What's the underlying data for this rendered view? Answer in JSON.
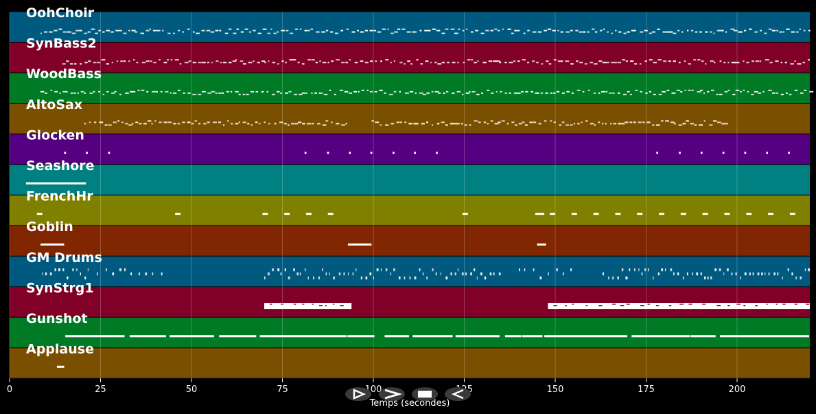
{
  "chart_data": {
    "type": "piano-roll",
    "xlabel": "Temps (secondes)",
    "xlim": [
      0,
      220
    ],
    "xticks": [
      0,
      25,
      50,
      75,
      100,
      125,
      150,
      175,
      200
    ],
    "grid": true,
    "colors": {
      "background": "#000000",
      "note": "#ffffff",
      "grid": "#ffffff"
    },
    "tracks": [
      {
        "name": "OohChoir",
        "color": "#005a80",
        "notes": [
          [
            8.5,
            220,
            "dense"
          ]
        ]
      },
      {
        "name": "SynBass2",
        "color": "#800028",
        "notes": [
          [
            14.5,
            220,
            "dense"
          ]
        ]
      },
      {
        "name": "WoodBass",
        "color": "#007a25",
        "notes": [
          [
            8.5,
            220,
            "dense"
          ]
        ]
      },
      {
        "name": "AltoSax",
        "color": "#7a5000",
        "notes": [
          [
            20.5,
            92.5,
            "dense"
          ],
          [
            99.5,
            197,
            "dense"
          ]
        ]
      },
      {
        "name": "Glocken",
        "color": "#550080",
        "notes": [
          [
            15,
            15.5
          ],
          [
            21,
            21.5
          ],
          [
            27.1,
            27.6
          ],
          [
            81.1,
            81.6
          ],
          [
            87.3,
            87.8
          ],
          [
            93.3,
            93.8
          ],
          [
            99.2,
            99.7
          ],
          [
            105.3,
            105.8
          ],
          [
            111.2,
            111.7
          ],
          [
            117.2,
            117.7
          ],
          [
            177.8,
            178.3
          ],
          [
            184,
            184.5
          ],
          [
            190,
            190.5
          ],
          [
            196,
            196.5
          ],
          [
            202,
            202.5
          ],
          [
            208,
            208.5
          ],
          [
            214,
            214.5
          ]
        ]
      },
      {
        "name": "Seashore",
        "color": "#008080",
        "notes": [
          [
            4.5,
            21
          ]
        ]
      },
      {
        "name": "FrenchHr",
        "color": "#808000",
        "notes": [
          [
            7.5,
            9
          ],
          [
            45.5,
            47
          ],
          [
            69.5,
            71
          ],
          [
            75.5,
            77
          ],
          [
            81.5,
            83
          ],
          [
            87.5,
            89
          ],
          [
            124.5,
            126
          ],
          [
            144.5,
            147
          ],
          [
            148.5,
            150
          ],
          [
            154.5,
            156
          ],
          [
            160.5,
            162
          ],
          [
            166.5,
            168
          ],
          [
            172.5,
            174
          ],
          [
            178.5,
            180
          ],
          [
            184.5,
            186
          ],
          [
            190.5,
            192
          ],
          [
            196.5,
            198
          ],
          [
            202.5,
            204
          ],
          [
            208.5,
            210
          ],
          [
            214.5,
            216
          ]
        ]
      },
      {
        "name": "Goblin",
        "color": "#802600",
        "notes": [
          [
            8.5,
            15
          ],
          [
            93,
            99.5
          ],
          [
            145,
            147.5
          ]
        ]
      },
      {
        "name": "GM Drums",
        "color": "#005a80",
        "notes": [
          [
            9,
            22,
            "dense"
          ],
          [
            24,
            43,
            "sparse"
          ],
          [
            70,
            135,
            "dense"
          ],
          [
            140,
            155,
            "sparse"
          ],
          [
            163,
            220,
            "dense"
          ]
        ]
      },
      {
        "name": "SynStrg1",
        "color": "#800028",
        "notes": [
          [
            70,
            94,
            "block"
          ],
          [
            148,
            220,
            "block"
          ]
        ]
      },
      {
        "name": "Gunshot",
        "color": "#007a25",
        "notes": [
          [
            15.3,
            31.6
          ],
          [
            33,
            43
          ],
          [
            44,
            56.2
          ],
          [
            57.6,
            67.8
          ],
          [
            68.8,
            92.7
          ],
          [
            92.9,
            100.3
          ],
          [
            103.1,
            109.8
          ],
          [
            110.8,
            121.8
          ],
          [
            122.6,
            134.7
          ],
          [
            136.2,
            140.7
          ],
          [
            140.9,
            146.5
          ],
          [
            147,
            169.8
          ],
          [
            171,
            187
          ],
          [
            187.2,
            194.1
          ],
          [
            195.3,
            219.8
          ]
        ]
      },
      {
        "name": "Applause",
        "color": "#7a5000",
        "notes": [
          [
            13,
            15
          ]
        ]
      }
    ]
  },
  "controls": [
    {
      "name": "play-button",
      "icon": "play-icon"
    },
    {
      "name": "fast-forward-button",
      "icon": "fast-forward-icon"
    },
    {
      "name": "stop-button",
      "icon": "stop-icon"
    },
    {
      "name": "rewind-button",
      "icon": "rewind-icon"
    }
  ]
}
